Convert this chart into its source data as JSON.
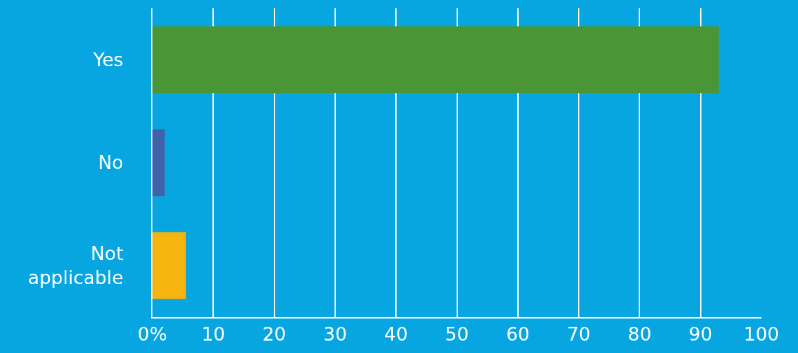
{
  "chart_data": {
    "type": "bar",
    "orientation": "horizontal",
    "categories": [
      "Yes",
      "No",
      "Not applicable"
    ],
    "values": [
      93,
      2,
      5.5
    ],
    "colors": [
      "#4a9535",
      "#3f62a8",
      "#f6b40e"
    ],
    "xlim": [
      0,
      100
    ],
    "xticks": [
      {
        "value": 0,
        "label": "0%"
      },
      10,
      20,
      30,
      40,
      50,
      60,
      70,
      80,
      90,
      100
    ],
    "grid": "x"
  }
}
